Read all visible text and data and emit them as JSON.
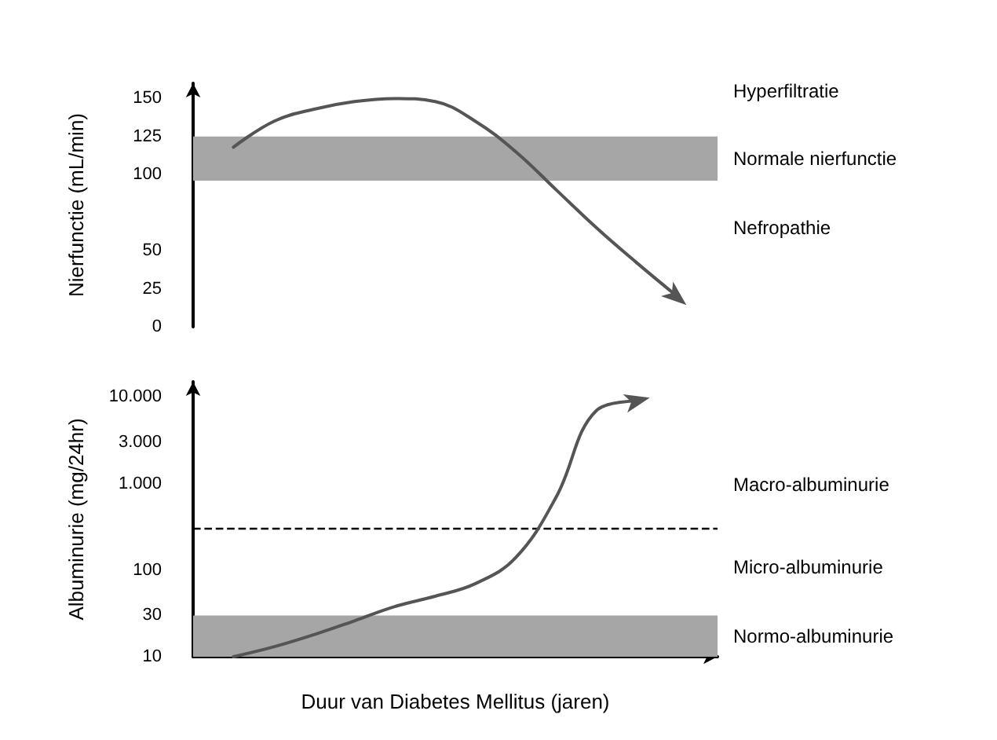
{
  "chart_data": [
    {
      "type": "line",
      "ylabel": "Nierfunctie (mL/min)",
      "categories": [
        null,
        null,
        null,
        null,
        null,
        null,
        null,
        null,
        null,
        null,
        null,
        null,
        null,
        null
      ],
      "series": [
        {
          "color": "#555555",
          "values": [
            null,
            118,
            135,
            143,
            148,
            150,
            148,
            135,
            115,
            90,
            65,
            42,
            20,
            null
          ]
        }
      ],
      "ylim": [
        0,
        160
      ],
      "yticks": [
        0,
        25,
        50,
        100,
        125,
        150
      ],
      "tick_labels": "y",
      "marker": "none",
      "line_style": "solid",
      "bands": [
        {
          "axis": "y",
          "from": 96,
          "to": 125,
          "label": "Normale nierfunctie",
          "color": "#a6a6a6"
        }
      ],
      "annotations": [
        "Hyperfiltratie",
        "Nefropathie"
      ]
    },
    {
      "type": "line",
      "ylabel": "Albuminurie (mg/24hr)",
      "xlabel": "Duur van Diabetes Mellitus (jaren)",
      "categories": [
        null,
        null,
        null,
        null,
        null,
        null,
        null,
        null,
        null,
        null,
        null,
        null,
        null,
        null
      ],
      "series": [
        {
          "color": "#555555",
          "values": [
            null,
            10,
            13,
            18,
            26,
            38,
            50,
            70,
            140,
            700,
            7000,
            9000,
            null,
            null
          ]
        }
      ],
      "log": "y",
      "ylim": [
        10,
        15000
      ],
      "yticks": [
        10,
        30,
        100,
        {
          "value": 1000,
          "label": "1.000"
        },
        {
          "value": 3000,
          "label": "3.000"
        },
        {
          "value": 10000,
          "label": "10.000"
        }
      ],
      "tick_labels": "y",
      "marker": "none",
      "line_style": "solid",
      "bands": [
        {
          "axis": "y",
          "from": 10,
          "to": 30,
          "label": "Normo-albuminurie",
          "color": "#a6a6a6"
        }
      ],
      "ref_lines": [
        {
          "axis": "y",
          "value": 300,
          "line_style": "dashed",
          "color": "#000000"
        }
      ],
      "annotations": [
        "Macro-albuminurie",
        "Micro-albuminurie"
      ]
    }
  ]
}
